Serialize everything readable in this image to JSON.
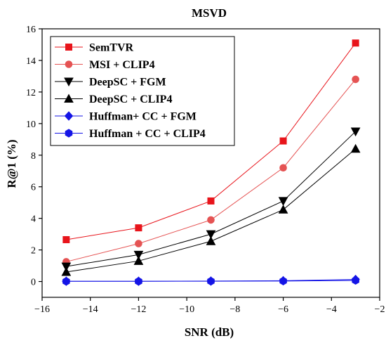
{
  "chart_data": {
    "type": "line",
    "title": "MSVD",
    "xlabel": "SNR (dB)",
    "ylabel": "R@1 (%)",
    "xlim": [
      -16,
      -2
    ],
    "ylim": [
      -1,
      16
    ],
    "xticks": [
      -16,
      -14,
      -12,
      -10,
      -8,
      -6,
      -4,
      -2
    ],
    "yticks": [
      0,
      2,
      4,
      6,
      8,
      10,
      12,
      14,
      16
    ],
    "xtick_labels": [
      "−16",
      "−14",
      "−12",
      "−10",
      "−8",
      "−6",
      "−4",
      "−2"
    ],
    "ytick_labels": [
      "0",
      "2",
      "4",
      "6",
      "8",
      "10",
      "12",
      "14",
      "16"
    ],
    "grid": false,
    "legend": "top-left",
    "x": [
      -15,
      -12,
      -9,
      -6,
      -3
    ],
    "series": [
      {
        "name": "SemTVR",
        "values": [
          2.65,
          3.4,
          5.1,
          8.9,
          15.1
        ],
        "color": "#e8141b",
        "marker": "square"
      },
      {
        "name": "MSI + CLIP4",
        "values": [
          1.25,
          2.4,
          3.9,
          7.2,
          12.8
        ],
        "color": "#e55353",
        "marker": "circle"
      },
      {
        "name": "DeepSC + FGM",
        "values": [
          0.95,
          1.7,
          3.0,
          5.1,
          9.5
        ],
        "color": "#000000",
        "marker": "triangle-down"
      },
      {
        "name": "DeepSC + CLIP4",
        "values": [
          0.6,
          1.3,
          2.55,
          4.55,
          8.4
        ],
        "color": "#000000",
        "marker": "triangle-up"
      },
      {
        "name": "Huffman+ CC + FGM",
        "values": [
          0.02,
          0.02,
          0.03,
          0.05,
          0.13
        ],
        "color": "#1414e6",
        "marker": "diamond"
      },
      {
        "name": "Huffman + CC + CLIP4",
        "values": [
          0.01,
          0.01,
          0.02,
          0.03,
          0.07
        ],
        "color": "#1414e6",
        "marker": "hexagon"
      }
    ]
  }
}
